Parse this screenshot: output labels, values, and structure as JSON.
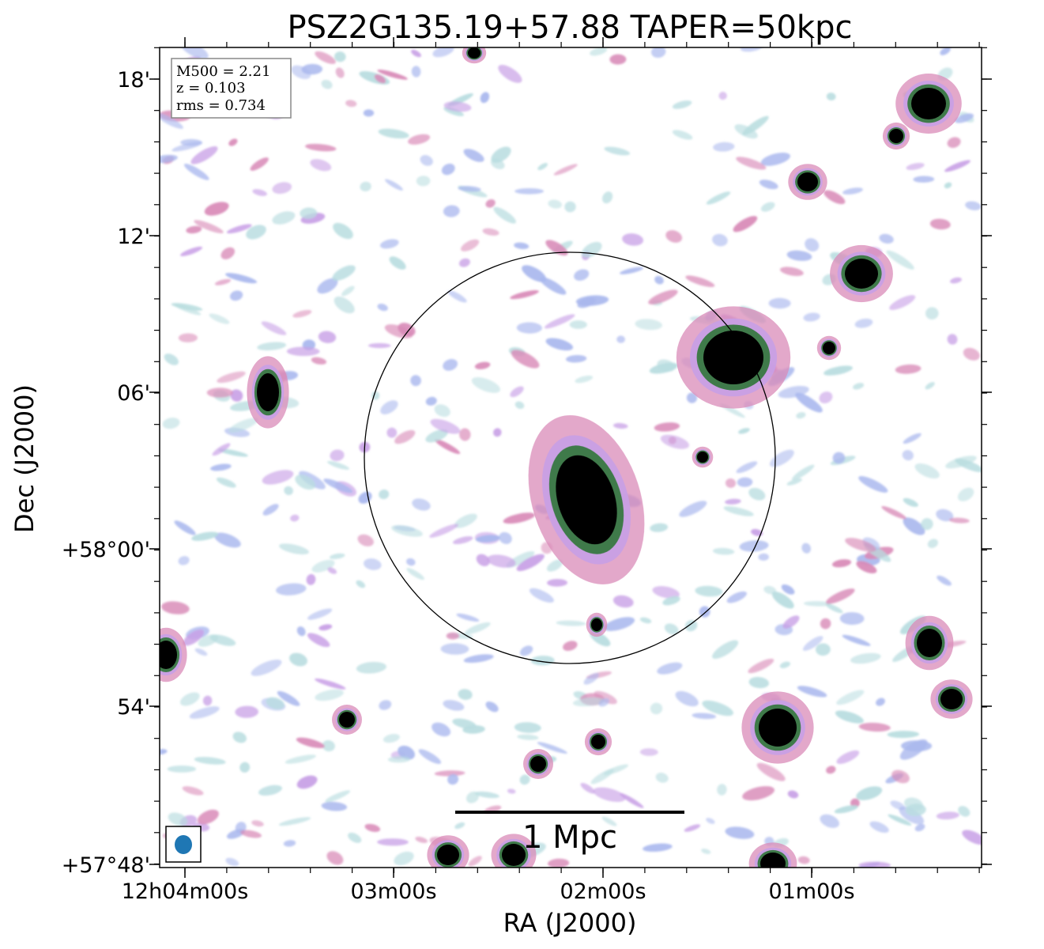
{
  "title": "PSZ2G135.19+57.88 TAPER=50kpc",
  "info": {
    "m500": "M500 = 2.21",
    "z": "z = 0.103",
    "rms": "rms = 0.734"
  },
  "scale_bar_label": "1 Mpc",
  "xlabel": "RA (J2000)",
  "ylabel": "Dec (J2000)",
  "xticks": [
    "12h04m00s",
    "03m00s",
    "02m00s",
    "01m00s"
  ],
  "yticks": [
    "18'",
    "12'",
    "06'",
    "+58°00'",
    "54'",
    "+57°48'"
  ],
  "colors": {
    "noise_light": "#b9dde0",
    "noise_blue": "#aab8ee",
    "noise_purple": "#c8a0e6",
    "emission_pink": "#d98bb8",
    "emission_green": "#3f7a4a",
    "bright_core": "#000000",
    "beam": "#1f77b4"
  }
}
